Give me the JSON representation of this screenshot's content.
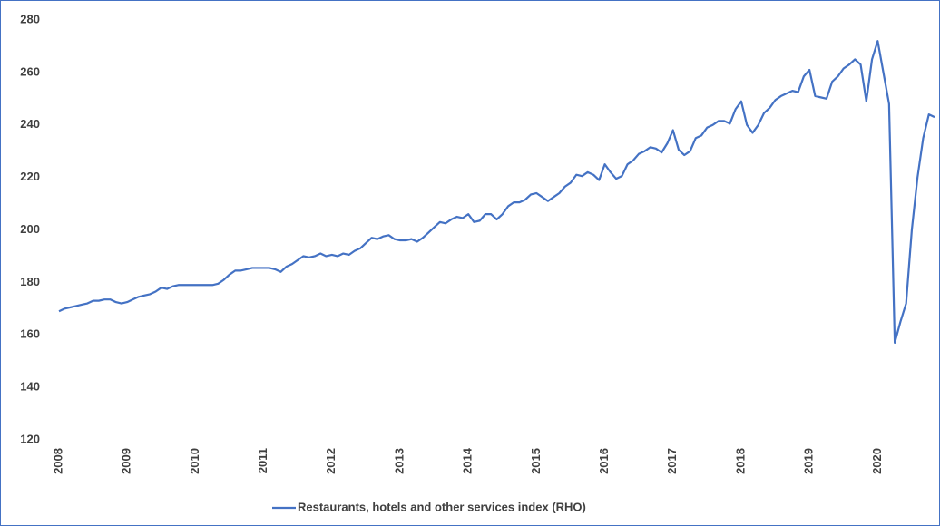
{
  "chart_data": {
    "type": "line",
    "categories": [
      "2008",
      null,
      null,
      null,
      null,
      null,
      null,
      null,
      null,
      null,
      null,
      null,
      "2009",
      null,
      null,
      null,
      null,
      null,
      null,
      null,
      null,
      null,
      null,
      null,
      "2010",
      null,
      null,
      null,
      null,
      null,
      null,
      null,
      null,
      null,
      null,
      null,
      "2011",
      null,
      null,
      null,
      null,
      null,
      null,
      null,
      null,
      null,
      null,
      null,
      "2012",
      null,
      null,
      null,
      null,
      null,
      null,
      null,
      null,
      null,
      null,
      null,
      "2013",
      null,
      null,
      null,
      null,
      null,
      null,
      null,
      null,
      null,
      null,
      null,
      "2014",
      null,
      null,
      null,
      null,
      null,
      null,
      null,
      null,
      null,
      null,
      null,
      "2015",
      null,
      null,
      null,
      null,
      null,
      null,
      null,
      null,
      null,
      null,
      null,
      "2016",
      null,
      null,
      null,
      null,
      null,
      null,
      null,
      null,
      null,
      null,
      null,
      "2017",
      null,
      null,
      null,
      null,
      null,
      null,
      null,
      null,
      null,
      null,
      null,
      "2018",
      null,
      null,
      null,
      null,
      null,
      null,
      null,
      null,
      null,
      null,
      null,
      "2019",
      null,
      null,
      null,
      null,
      null,
      null,
      null,
      null,
      null,
      null,
      null,
      "2020",
      null,
      null,
      null,
      null,
      null,
      null,
      null,
      null,
      null,
      null
    ],
    "series": [
      {
        "name": "Restaurants, hotels and other services index (RHO)",
        "color": "#4472c4",
        "values": [
          169,
          170,
          170.5,
          171,
          171.5,
          172,
          173,
          173,
          173.5,
          173.5,
          172.5,
          172,
          172.5,
          173.5,
          174.5,
          175,
          175.5,
          176.5,
          178,
          177.5,
          178.5,
          179,
          179,
          179,
          179,
          179,
          179,
          179,
          179.5,
          181,
          183,
          184.5,
          184.5,
          185,
          185.5,
          185.5,
          185.5,
          185.5,
          185,
          184,
          186,
          187,
          188.5,
          190,
          189.5,
          190,
          191,
          190,
          190.5,
          190,
          191,
          190.5,
          192,
          193,
          195,
          197,
          196.5,
          197.5,
          198,
          196.5,
          196,
          196,
          196.5,
          195.5,
          197,
          199,
          201,
          203,
          202.5,
          204,
          205,
          204.5,
          206,
          203,
          203.5,
          206,
          206,
          204,
          206,
          209,
          210.5,
          210.5,
          211.5,
          213.5,
          214,
          212.5,
          211,
          212.5,
          214,
          216.5,
          218,
          221,
          220.5,
          222,
          221,
          219,
          225,
          222,
          219.5,
          220.5,
          225,
          226.5,
          229,
          230,
          231.5,
          231,
          229.5,
          233,
          238,
          230.5,
          228.5,
          230,
          235,
          236,
          239,
          240,
          241.5,
          241.5,
          240.5,
          246,
          249,
          240,
          237,
          240,
          244.5,
          246.5,
          249.5,
          251,
          252,
          253,
          252.5,
          258.5,
          261,
          251,
          250.5,
          250,
          256.5,
          258.5,
          261.5,
          263,
          265,
          263,
          249,
          265,
          272,
          260,
          248,
          157,
          165,
          172,
          200,
          220,
          235,
          244,
          243
        ]
      }
    ],
    "ylim": [
      120,
      280
    ],
    "yticks": [
      120,
      140,
      160,
      180,
      200,
      220,
      240,
      260,
      280
    ],
    "legend": "bottom"
  }
}
